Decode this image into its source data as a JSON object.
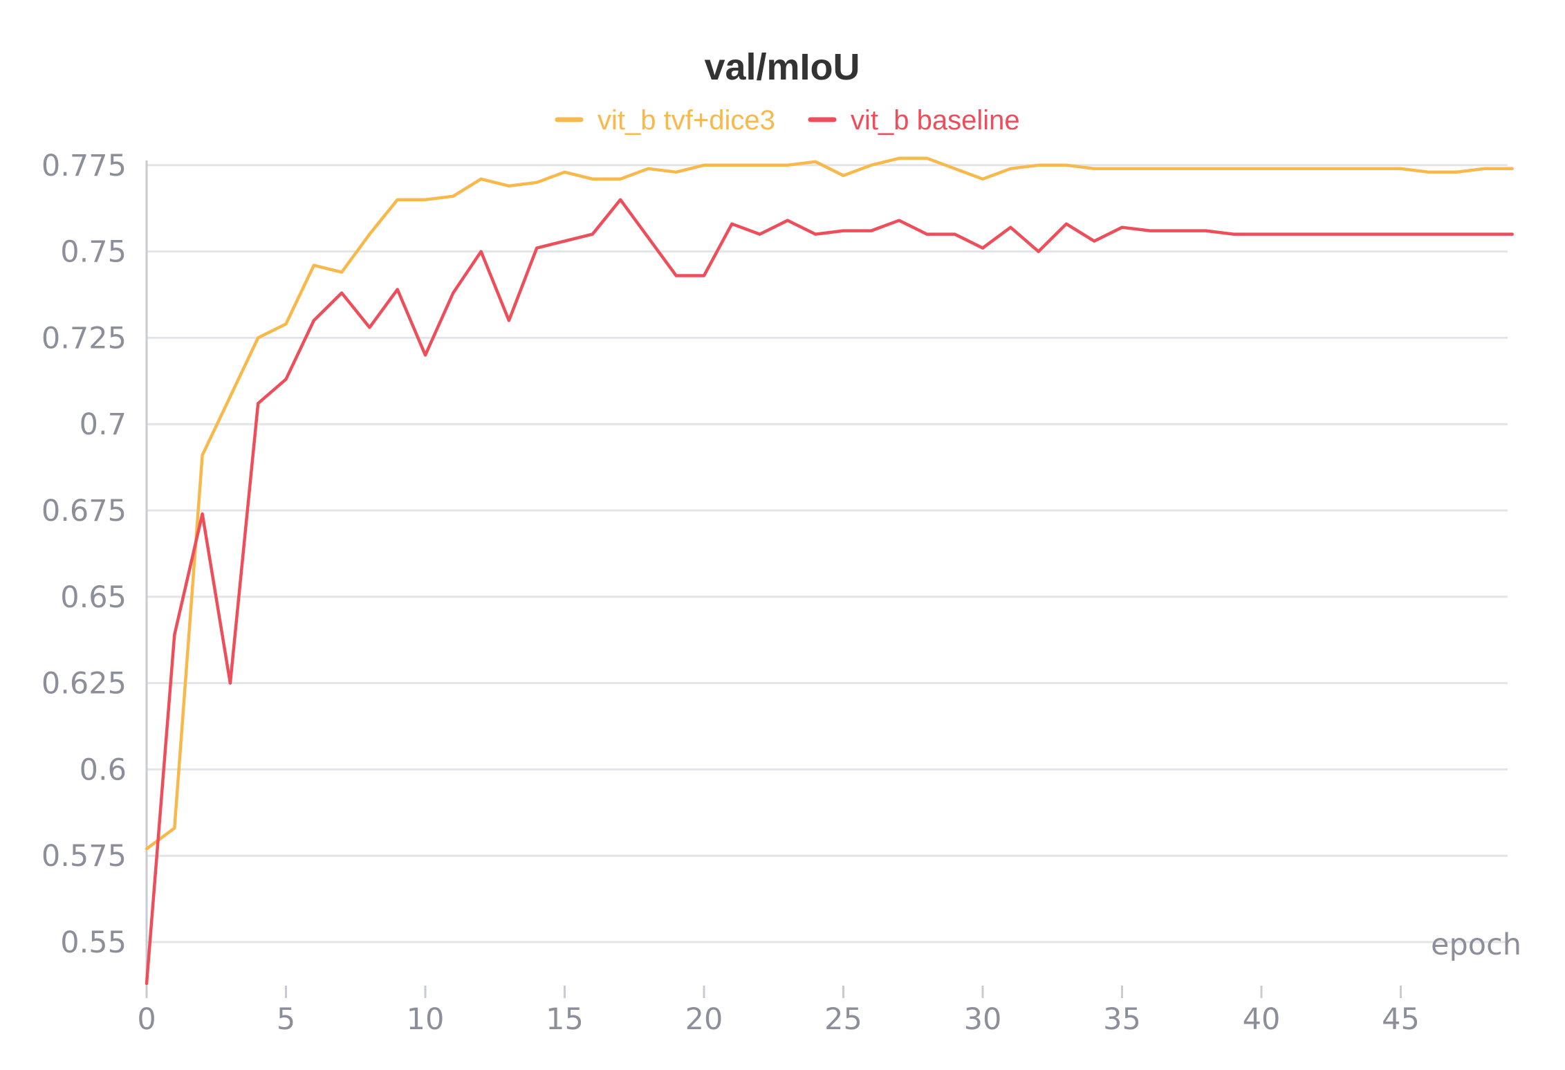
{
  "chart_data": {
    "type": "line",
    "title": "val/mIoU",
    "xlabel": "epoch",
    "ylabel": "",
    "xlim": [
      0,
      49
    ],
    "ylim": [
      0.538,
      0.777
    ],
    "x_ticks": [
      0,
      5,
      10,
      15,
      20,
      25,
      30,
      35,
      40,
      45
    ],
    "x_tick_labels": [
      "0",
      "5",
      "10",
      "15",
      "20",
      "25",
      "30",
      "35",
      "40",
      "45"
    ],
    "y_ticks": [
      0.55,
      0.575,
      0.6,
      0.625,
      0.65,
      0.675,
      0.7,
      0.725,
      0.75,
      0.775
    ],
    "y_tick_labels": [
      "0.55",
      "0.575",
      "0.6",
      "0.625",
      "0.65",
      "0.675",
      "0.7",
      "0.725",
      "0.75",
      "0.775"
    ],
    "grid": true,
    "legend_position": "top-center",
    "series": [
      {
        "name": "vit_b tvf+dice3",
        "color": "#f8b84a",
        "x": [
          0,
          1,
          2,
          3,
          4,
          5,
          6,
          7,
          8,
          9,
          10,
          11,
          12,
          13,
          14,
          15,
          16,
          17,
          18,
          19,
          20,
          21,
          22,
          23,
          24,
          25,
          26,
          27,
          28,
          29,
          30,
          31,
          32,
          33,
          34,
          35,
          36,
          37,
          38,
          39,
          40,
          41,
          42,
          43,
          44,
          45,
          46,
          47,
          48,
          49
        ],
        "values": [
          0.577,
          0.583,
          0.691,
          0.708,
          0.725,
          0.729,
          0.746,
          0.744,
          0.755,
          0.765,
          0.765,
          0.766,
          0.771,
          0.769,
          0.77,
          0.773,
          0.771,
          0.771,
          0.774,
          0.773,
          0.775,
          0.775,
          0.775,
          0.775,
          0.776,
          0.772,
          0.775,
          0.777,
          0.777,
          0.774,
          0.771,
          0.774,
          0.775,
          0.775,
          0.774,
          0.774,
          0.774,
          0.774,
          0.774,
          0.774,
          0.774,
          0.774,
          0.774,
          0.774,
          0.774,
          0.774,
          0.773,
          0.773,
          0.774,
          0.774
        ]
      },
      {
        "name": "vit_b baseline",
        "color": "#ee4d5a",
        "x": [
          0,
          1,
          2,
          3,
          4,
          5,
          6,
          7,
          8,
          9,
          10,
          11,
          12,
          13,
          14,
          15,
          16,
          17,
          18,
          19,
          20,
          21,
          22,
          23,
          24,
          25,
          26,
          27,
          28,
          29,
          30,
          31,
          32,
          33,
          34,
          35,
          36,
          37,
          38,
          39,
          40,
          41,
          42,
          43,
          44,
          45,
          46,
          47,
          48,
          49
        ],
        "values": [
          0.538,
          0.639,
          0.674,
          0.625,
          0.706,
          0.713,
          0.73,
          0.738,
          0.728,
          0.739,
          0.72,
          0.738,
          0.75,
          0.73,
          0.751,
          0.753,
          0.755,
          0.765,
          0.754,
          0.743,
          0.743,
          0.758,
          0.755,
          0.759,
          0.755,
          0.756,
          0.756,
          0.759,
          0.755,
          0.755,
          0.751,
          0.757,
          0.75,
          0.758,
          0.753,
          0.757,
          0.756,
          0.756,
          0.756,
          0.755,
          0.755,
          0.755,
          0.755,
          0.755,
          0.755,
          0.755,
          0.755,
          0.755,
          0.755,
          0.755
        ]
      }
    ]
  }
}
